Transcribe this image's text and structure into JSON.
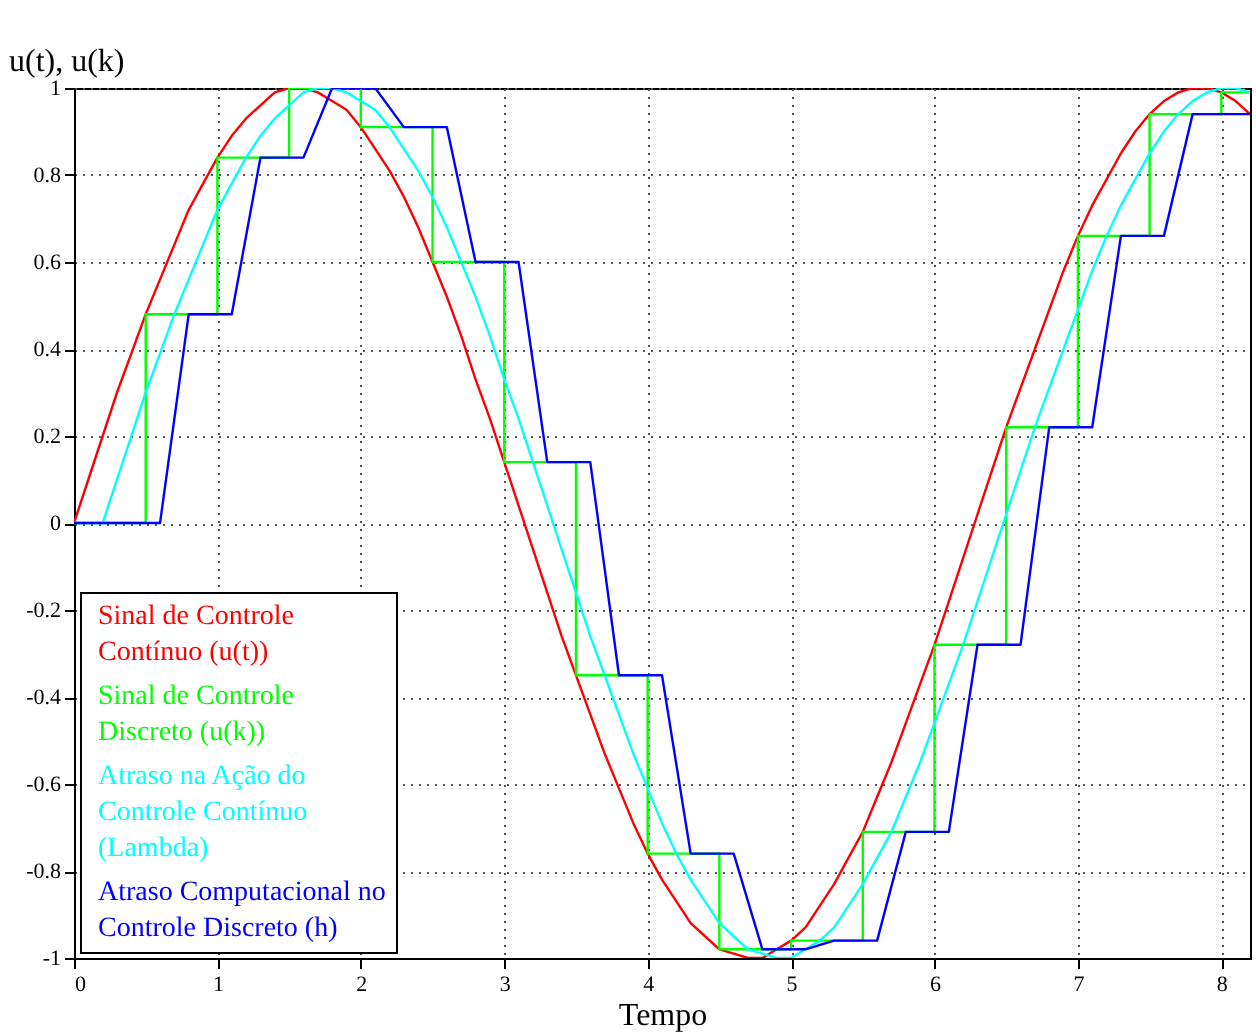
{
  "chart_data": {
    "type": "line",
    "xlabel": "Tempo",
    "ylabel": "u(t), u(k)",
    "xlim": [
      0,
      8.2
    ],
    "xticks": [
      0,
      1,
      2,
      3,
      4,
      5,
      6,
      7,
      8
    ],
    "ylim": [
      -1,
      1
    ],
    "yticks": [
      -1,
      -0.8,
      -0.6,
      -0.4,
      -0.2,
      0,
      0.2,
      0.4,
      0.6,
      0.8,
      1
    ],
    "grid": true,
    "legend": "bottom left",
    "series": [
      {
        "name": "Sinal de Controle Contínuo (u(t))",
        "color": "#ff0000",
        "x": [
          0,
          0.1,
          0.2,
          0.3,
          0.4,
          0.5,
          0.6,
          0.7,
          0.8,
          0.9,
          1,
          1.1,
          1.2,
          1.3,
          1.4,
          1.5,
          1.6,
          1.7,
          1.8,
          1.9,
          2,
          2.1,
          2.2,
          2.3,
          2.4,
          2.5,
          2.6,
          2.7,
          2.8,
          2.9,
          3,
          3.1,
          3.2,
          3.3,
          3.4,
          3.5,
          3.6,
          3.7,
          3.8,
          3.9,
          4,
          4.1,
          4.2,
          4.3,
          4.4,
          4.5,
          4.6,
          4.7,
          4.8,
          4.9,
          5,
          5.1,
          5.2,
          5.3,
          5.4,
          5.5,
          5.6,
          5.7,
          5.8,
          5.9,
          6,
          6.1,
          6.2,
          6.3,
          6.4,
          6.5,
          6.6,
          6.7,
          6.8,
          6.9,
          7,
          7.1,
          7.2,
          7.3,
          7.4,
          7.5,
          7.6,
          7.7,
          7.8,
          7.9,
          8,
          8.1,
          8.2
        ],
        "values": [
          0,
          0.1,
          0.2,
          0.3,
          0.39,
          0.48,
          0.56,
          0.64,
          0.72,
          0.78,
          0.84,
          0.89,
          0.93,
          0.96,
          0.99,
          1,
          1,
          0.99,
          0.97,
          0.95,
          0.91,
          0.86,
          0.81,
          0.75,
          0.68,
          0.6,
          0.52,
          0.43,
          0.33,
          0.24,
          0.14,
          0.04,
          -0.06,
          -0.16,
          -0.26,
          -0.35,
          -0.44,
          -0.53,
          -0.61,
          -0.69,
          -0.76,
          -0.82,
          -0.87,
          -0.92,
          -0.95,
          -0.98,
          -0.99,
          -1,
          -1,
          -0.98,
          -0.96,
          -0.93,
          -0.88,
          -0.83,
          -0.77,
          -0.71,
          -0.63,
          -0.55,
          -0.46,
          -0.37,
          -0.28,
          -0.18,
          -0.08,
          0.02,
          0.12,
          0.22,
          0.31,
          0.4,
          0.49,
          0.58,
          0.66,
          0.73,
          0.79,
          0.85,
          0.9,
          0.94,
          0.97,
          0.99,
          1,
          1,
          0.99,
          0.97,
          0.94
        ]
      },
      {
        "name": "Sinal de Controle Discreto (u(k))",
        "color": "#00ff00",
        "type": "step",
        "x": [
          0,
          0.5,
          1,
          1.5,
          2,
          2.5,
          3,
          3.5,
          4,
          4.5,
          5,
          5.5,
          6,
          6.5,
          7,
          7.5,
          8,
          8.2
        ],
        "values": [
          0,
          0.48,
          0.84,
          1,
          0.91,
          0.6,
          0.14,
          -0.35,
          -0.76,
          -0.98,
          -0.96,
          -0.71,
          -0.28,
          0.22,
          0.66,
          0.94,
          0.99,
          0.99
        ]
      },
      {
        "name": "Atraso na Ação do Controle Contínuo (Lambda)",
        "color": "#00ffff",
        "x": [
          0,
          0.2,
          0.3,
          0.4,
          0.5,
          0.6,
          0.7,
          0.8,
          0.9,
          1,
          1.1,
          1.2,
          1.3,
          1.4,
          1.5,
          1.6,
          1.7,
          1.8,
          1.9,
          2,
          2.1,
          2.2,
          2.3,
          2.4,
          2.5,
          2.6,
          2.7,
          2.8,
          2.9,
          3,
          3.1,
          3.2,
          3.3,
          3.4,
          3.5,
          3.6,
          3.7,
          3.8,
          3.9,
          4,
          4.1,
          4.2,
          4.3,
          4.4,
          4.5,
          4.6,
          4.7,
          4.8,
          4.9,
          5,
          5.1,
          5.2,
          5.3,
          5.4,
          5.5,
          5.6,
          5.7,
          5.8,
          5.9,
          6,
          6.1,
          6.2,
          6.3,
          6.4,
          6.5,
          6.6,
          6.7,
          6.8,
          6.9,
          7,
          7.1,
          7.2,
          7.3,
          7.4,
          7.5,
          7.6,
          7.7,
          7.8,
          7.9,
          8,
          8.1,
          8.2
        ],
        "values": [
          0,
          0,
          0.1,
          0.2,
          0.3,
          0.39,
          0.48,
          0.56,
          0.64,
          0.72,
          0.78,
          0.84,
          0.89,
          0.93,
          0.96,
          0.99,
          1,
          1,
          0.99,
          0.97,
          0.95,
          0.91,
          0.86,
          0.81,
          0.75,
          0.68,
          0.6,
          0.52,
          0.43,
          0.33,
          0.24,
          0.14,
          0.04,
          -0.06,
          -0.16,
          -0.26,
          -0.35,
          -0.44,
          -0.53,
          -0.61,
          -0.69,
          -0.76,
          -0.82,
          -0.87,
          -0.92,
          -0.95,
          -0.98,
          -0.99,
          -1,
          -1,
          -0.98,
          -0.96,
          -0.93,
          -0.88,
          -0.83,
          -0.77,
          -0.71,
          -0.63,
          -0.55,
          -0.46,
          -0.37,
          -0.28,
          -0.18,
          -0.08,
          0.02,
          0.12,
          0.22,
          0.31,
          0.4,
          0.49,
          0.58,
          0.66,
          0.73,
          0.79,
          0.85,
          0.9,
          0.94,
          0.97,
          0.99,
          1,
          1,
          0.99
        ]
      },
      {
        "name": "Atraso Computacional no Controle Discreto (h)",
        "color": "#0000ff",
        "x": [
          0,
          0.6,
          0.8,
          1.1,
          1.3,
          1.6,
          1.8,
          2.1,
          2.3,
          2.6,
          2.8,
          3.1,
          3.3,
          3.6,
          3.8,
          4.1,
          4.3,
          4.6,
          4.8,
          5.1,
          5.3,
          5.6,
          5.8,
          6.1,
          6.3,
          6.6,
          6.8,
          7.1,
          7.3,
          7.6,
          7.8,
          8.2
        ],
        "values": [
          0,
          0,
          0.48,
          0.48,
          0.84,
          0.84,
          1,
          1,
          0.91,
          0.91,
          0.6,
          0.6,
          0.14,
          0.14,
          -0.35,
          -0.35,
          -0.76,
          -0.76,
          -0.98,
          -0.98,
          -0.96,
          -0.96,
          -0.71,
          -0.71,
          -0.28,
          -0.28,
          0.22,
          0.22,
          0.66,
          0.66,
          0.94,
          0.94
        ]
      }
    ]
  }
}
